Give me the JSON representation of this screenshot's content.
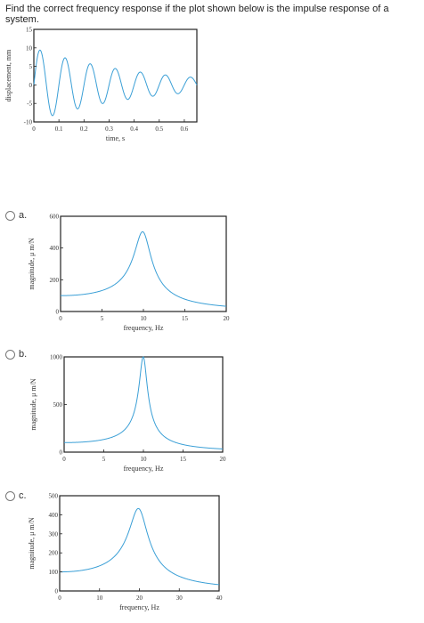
{
  "question": {
    "text": "Find the correct frequency response if the plot shown below is the impulse response of a system."
  },
  "options": [
    {
      "letter": "a."
    },
    {
      "letter": "b."
    },
    {
      "letter": "c."
    }
  ],
  "colors": {
    "curve": "#3a9fd6",
    "axes": "#222222"
  },
  "chart_data": [
    {
      "type": "line",
      "title": "",
      "xlabel": "time, s",
      "ylabel": "displacement, mm",
      "xlim": [
        0,
        0.65
      ],
      "ylim": [
        -10,
        15
      ],
      "xticks": [
        "0",
        "0.1",
        "0.2",
        "0.3",
        "0.4",
        "0.5",
        "0.6"
      ],
      "yticks": [
        "-10",
        "-5",
        "0",
        "5",
        "10",
        "15"
      ],
      "series": [
        {
          "frequency_hz": 10,
          "decay_per_s": 2.5,
          "amplitude_mm": 10
        }
      ]
    },
    {
      "type": "line",
      "title": "",
      "xlabel": "frequency, Hz",
      "ylabel": "magnitude, μ m/N",
      "xlim": [
        0,
        20
      ],
      "ylim": [
        0,
        600
      ],
      "xticks": [
        "0",
        "5",
        "10",
        "15",
        "20"
      ],
      "yticks": [
        "0",
        "200",
        "400",
        "600"
      ],
      "series": [
        {
          "peak_frequency_hz": 10,
          "peak_magnitude": 500,
          "static_magnitude": 100
        }
      ]
    },
    {
      "type": "line",
      "title": "",
      "xlabel": "frequency, Hz",
      "ylabel": "magnitude, μ m/N",
      "xlim": [
        0,
        20
      ],
      "ylim": [
        0,
        1000
      ],
      "xticks": [
        "0",
        "5",
        "10",
        "15",
        "20"
      ],
      "yticks": [
        "0",
        "500",
        "1000"
      ],
      "series": [
        {
          "peak_frequency_hz": 10,
          "peak_magnitude": 1000,
          "static_magnitude": 100
        }
      ]
    },
    {
      "type": "line",
      "title": "",
      "xlabel": "frequency, Hz",
      "ylabel": "magnitude, μ m/N",
      "xlim": [
        0,
        40
      ],
      "ylim": [
        0,
        500
      ],
      "xticks": [
        "0",
        "10",
        "20",
        "30",
        "40"
      ],
      "yticks": [
        "0",
        "100",
        "200",
        "300",
        "400",
        "500"
      ],
      "series": [
        {
          "peak_frequency_hz": 20,
          "peak_magnitude": 430,
          "static_magnitude": 100
        }
      ]
    }
  ]
}
